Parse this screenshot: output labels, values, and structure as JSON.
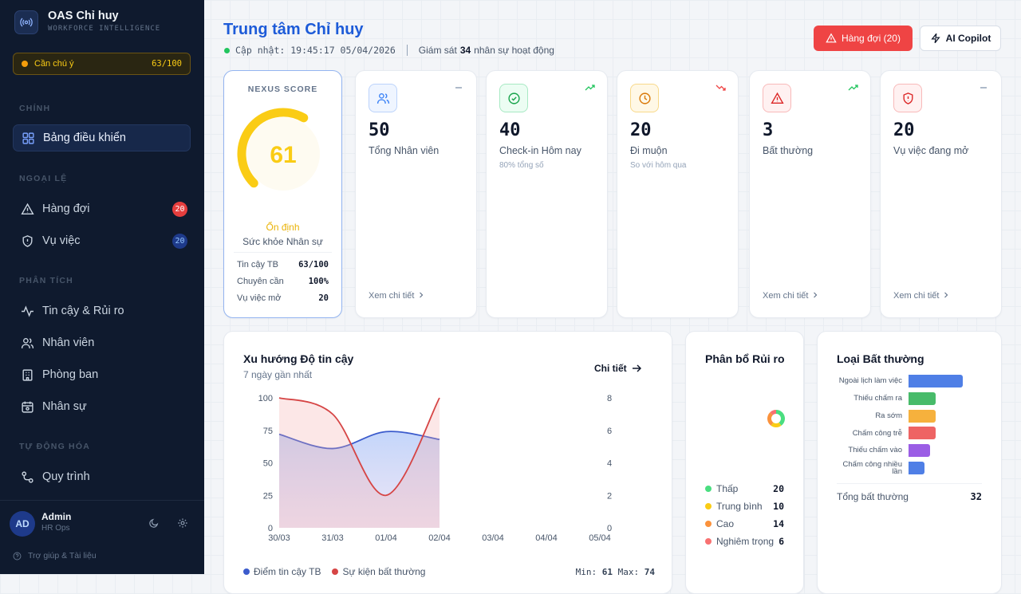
{
  "sidebar": {
    "brand": {
      "title": "OAS Chỉ huy",
      "subtitle": "WORKFORCE INTELLIGENCE"
    },
    "status": {
      "label": "Cần chú ý",
      "score": "63/100"
    },
    "sections": [
      {
        "title": "CHÍNH",
        "items": [
          {
            "label": "Bảng điều khiển"
          }
        ]
      },
      {
        "title": "NGOẠI LỆ",
        "items": [
          {
            "label": "Hàng đợi",
            "badge": "20"
          },
          {
            "label": "Vụ việc",
            "badge": "20"
          }
        ]
      },
      {
        "title": "PHÂN TÍCH",
        "items": [
          {
            "label": "Tin cậy & Rủi ro"
          },
          {
            "label": "Nhân viên"
          },
          {
            "label": "Phòng ban"
          },
          {
            "label": "Nhân sự"
          }
        ]
      },
      {
        "title": "TỰ ĐỘNG HÓA",
        "items": [
          {
            "label": "Quy trình"
          }
        ]
      }
    ],
    "user": {
      "initials": "AD",
      "name": "Admin",
      "role": "HR Ops"
    },
    "help": "Trợ giúp & Tài liệu"
  },
  "header": {
    "title": "Trung tâm Chỉ huy",
    "updated": "Cập nhật: 19:45:17 05/04/2026",
    "monitor_prefix": "Giám sát",
    "monitor_count": 34,
    "monitor_suffix": "nhân sự hoạt động",
    "buttons": [
      "Hàng đợi (20)",
      "AI Copilot"
    ]
  },
  "nexus": {
    "title": "NEXUS SCORE",
    "score": 61,
    "lim": [
      0,
      100
    ],
    "status": "Ổn định",
    "label": "Sức khỏe Nhân sự",
    "rows": [
      [
        "Tin cậy TB",
        "63/100"
      ],
      [
        "Chuyên cần",
        "100%"
      ],
      [
        "Vụ việc mở",
        "20"
      ]
    ]
  },
  "kpis": [
    {
      "value": 50,
      "label": "Tổng Nhân viên",
      "link": "Xem chi tiết"
    },
    {
      "value": 40,
      "label": "Check-in Hôm nay",
      "sub": "80% tổng số"
    },
    {
      "value": 20,
      "label": "Đi muộn",
      "sub": "So với hôm qua"
    },
    {
      "value": 3,
      "label": "Bất thường",
      "link": "Xem chi tiết"
    },
    {
      "value": 20,
      "label": "Vụ việc đang mở",
      "link": "Xem chi tiết"
    }
  ],
  "chart_data": [
    {
      "type": "line",
      "title": "Xu hướng Độ tin cậy",
      "subtitle": "7 ngày gần nhất",
      "link": "Chi tiết",
      "categories": [
        "30/03",
        "31/03",
        "01/04",
        "02/04",
        "03/04",
        "04/04",
        "05/04"
      ],
      "series": [
        {
          "name": "Điểm tin cậy TB",
          "color": "#3b5bcc",
          "values": [
            72,
            61,
            74,
            68,
            null,
            null,
            null
          ]
        },
        {
          "name": "Sự kiện bất thường",
          "color": "#d64545",
          "axis": "y2",
          "values": [
            8,
            7,
            2,
            8,
            null,
            null,
            null
          ]
        }
      ],
      "ylim": [
        0,
        100
      ],
      "yticks": [
        0,
        25,
        50,
        75,
        100
      ],
      "y2lim": [
        0,
        8
      ],
      "y2ticks": [
        0,
        2,
        4,
        6,
        8
      ],
      "stats": {
        "min_label": "Min:",
        "min": 61,
        "max_label": "Max:",
        "max": 74
      }
    },
    {
      "type": "pie",
      "title": "Phân bổ Rủi ro",
      "categories": [
        "Thấp",
        "Trung bình",
        "Cao",
        "Nghiêm trọng"
      ],
      "values": [
        20,
        10,
        14,
        6
      ],
      "colors": [
        "#4ade80",
        "#facc15",
        "#fb923c",
        "#f87171"
      ]
    },
    {
      "type": "hbar",
      "title": "Loại Bất thường",
      "categories": [
        "Ngoài lịch làm việc",
        "Thiếu chấm ra",
        "Ra sớm",
        "Chấm công trễ",
        "Thiếu chấm vào",
        "Chấm công nhiều lần"
      ],
      "values": [
        10,
        5,
        5,
        5,
        4,
        3
      ],
      "colors": [
        "#4f7fe6",
        "#48bb6a",
        "#f6b13d",
        "#ee6464",
        "#9b5de5",
        "#4f7fe6"
      ],
      "xlim": [
        0,
        10
      ],
      "total_label": "Tổng bất thường",
      "total": 32
    }
  ]
}
